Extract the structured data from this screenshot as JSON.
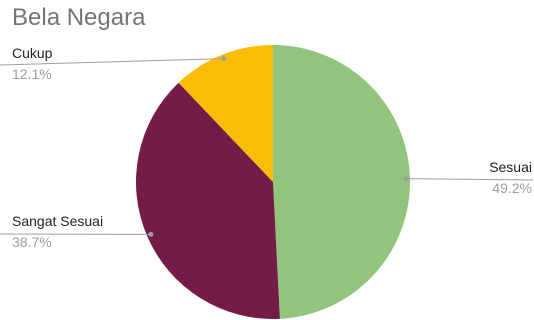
{
  "chart_data": {
    "type": "pie",
    "title": "Bela Negara",
    "slices": [
      {
        "label": "Sesuai",
        "value": 49.2,
        "value_label": "49.2%",
        "color": "#93c47d"
      },
      {
        "label": "Sangat Sesuai",
        "value": 38.7,
        "value_label": "38.7%",
        "color": "#741b47"
      },
      {
        "label": "Cukup",
        "value": 12.1,
        "value_label": "12.1%",
        "color": "#fbbc04"
      }
    ],
    "start_angle": "12 o'clock",
    "direction": "clockwise",
    "legend": "none"
  }
}
